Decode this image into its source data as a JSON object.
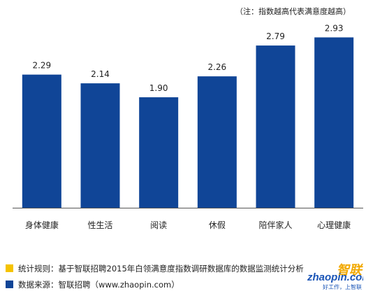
{
  "note": "（注：指数越高代表满意度越高）",
  "colors": {
    "bar": "#104597",
    "rule_square": "#f5c300",
    "source_square": "#104597",
    "axis": "#555555"
  },
  "chart_data": {
    "type": "bar",
    "categories": [
      "身体健康",
      "性生活",
      "阅读",
      "休假",
      "陪伴家人",
      "心理健康"
    ],
    "values": [
      2.29,
      2.14,
      1.9,
      2.26,
      2.79,
      2.93
    ],
    "value_labels": [
      "2.29",
      "2.14",
      "1.90",
      "2.26",
      "2.79",
      "2.93"
    ],
    "ylim": [
      0,
      3.2
    ],
    "grid": false,
    "title": "",
    "xlabel": "",
    "ylabel": ""
  },
  "footer": {
    "rule": "统计规则：基于智联招聘2015年白领满意度指数调研数据库的数据监测统计分析",
    "source": "数据来源：智联招聘（www.zhaopin.com）"
  },
  "logo": {
    "top": "智联",
    "main": "zhaopin.com",
    "slogan": "好工作，上智联"
  }
}
